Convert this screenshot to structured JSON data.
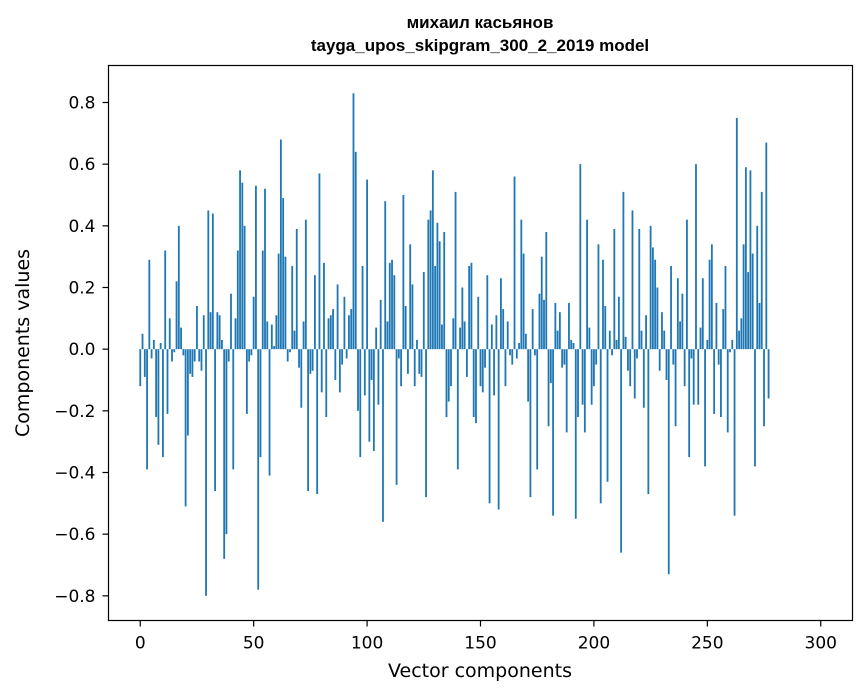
{
  "chart_data": {
    "type": "bar",
    "title_line1": "михаил касьянов",
    "title_line2": "tayga_upos_skipgram_300_2_2019 model",
    "xlabel": "Vector components",
    "ylabel": "Components values",
    "xlim": [
      -14,
      314
    ],
    "ylim": [
      -0.88,
      0.92
    ],
    "xticks": [
      0,
      50,
      100,
      150,
      200,
      250,
      300
    ],
    "yticks": [
      -0.8,
      -0.6,
      -0.4,
      -0.2,
      0.0,
      0.2,
      0.4,
      0.6,
      0.8
    ],
    "ytick_labels": [
      "−0.8",
      "−0.6",
      "−0.4",
      "−0.2",
      "0.0",
      "0.2",
      "0.4",
      "0.6",
      "0.8"
    ],
    "bar_color": "#1f77b4",
    "grid": false,
    "values": [
      -0.12,
      0.05,
      -0.09,
      -0.39,
      0.29,
      -0.03,
      0.03,
      -0.22,
      -0.31,
      0.02,
      -0.35,
      0.32,
      -0.21,
      0.1,
      -0.04,
      -0.01,
      0.22,
      0.4,
      0.07,
      -0.02,
      -0.51,
      -0.28,
      -0.08,
      -0.09,
      -0.04,
      0.14,
      -0.04,
      -0.07,
      0.11,
      -0.8,
      0.45,
      0.12,
      0.44,
      -0.46,
      0.12,
      0.11,
      0.03,
      -0.68,
      -0.6,
      -0.04,
      0.18,
      -0.39,
      0.1,
      0.32,
      0.58,
      0.54,
      0.4,
      -0.21,
      -0.04,
      -0.02,
      0.17,
      0.53,
      -0.78,
      -0.35,
      0.32,
      0.52,
      0.09,
      -0.41,
      0.08,
      0.01,
      0.11,
      0.31,
      0.68,
      0.49,
      0.3,
      -0.04,
      -0.01,
      0.27,
      0.06,
      0.39,
      -0.06,
      -0.19,
      0.09,
      0.42,
      -0.46,
      -0.08,
      -0.07,
      0.24,
      -0.47,
      0.57,
      -0.14,
      0.28,
      -0.22,
      0.1,
      0.11,
      0.13,
      -0.1,
      0.21,
      -0.14,
      -0.05,
      0.17,
      -0.03,
      0.11,
      0.13,
      0.83,
      0.64,
      -0.2,
      -0.35,
      0.27,
      -0.15,
      0.55,
      -0.3,
      -0.1,
      -0.33,
      0.07,
      -0.18,
      0.16,
      -0.56,
      0.48,
      0.09,
      0.28,
      0.29,
      0.24,
      -0.44,
      -0.03,
      -0.12,
      0.5,
      0.14,
      -0.08,
      0.34,
      0.21,
      -0.12,
      0.03,
      -0.08,
      -0.09,
      0.25,
      -0.48,
      0.42,
      0.45,
      0.58,
      0.27,
      0.41,
      0.35,
      0.08,
      0.38,
      -0.22,
      -0.17,
      -0.12,
      0.1,
      0.51,
      -0.39,
      0.07,
      0.2,
      0.09,
      -0.09,
      0.27,
      0.28,
      -0.22,
      -0.24,
      0.17,
      -0.12,
      -0.14,
      -0.06,
      0.24,
      -0.5,
      0.08,
      -0.15,
      0.11,
      -0.52,
      0.23,
      0.13,
      -0.12,
      0.09,
      -0.02,
      -0.05,
      0.56,
      -0.03,
      0.02,
      0.42,
      0.31,
      0.05,
      -0.17,
      -0.48,
      0.13,
      -0.02,
      -0.39,
      0.18,
      0.3,
      0.16,
      0.38,
      -0.25,
      -0.11,
      -0.54,
      0.15,
      0.06,
      0.12,
      -0.06,
      -0.05,
      -0.27,
      0.15,
      0.03,
      0.02,
      -0.55,
      -0.22,
      0.6,
      -0.18,
      -0.27,
      0.42,
      0.07,
      -0.18,
      -0.12,
      -0.05,
      0.34,
      -0.5,
      0.29,
      0.14,
      -0.43,
      0.06,
      -0.02,
      0.39,
      0.03,
      0.17,
      -0.66,
      0.51,
      0.04,
      -0.07,
      -0.12,
      0.45,
      -0.16,
      -0.03,
      0.39,
      0.06,
      -0.19,
      0.11,
      -0.47,
      0.4,
      0.33,
      0.29,
      0.2,
      -0.07,
      0.12,
      0.06,
      -0.1,
      -0.73,
      0.27,
      -0.05,
      -0.25,
      0.23,
      0.09,
      0.18,
      -0.12,
      0.42,
      -0.35,
      -0.03,
      -0.18,
      0.6,
      -0.18,
      0.07,
      0.23,
      -0.38,
      0.03,
      0.29,
      0.34,
      -0.21,
      0.15,
      -0.05,
      -0.22,
      0.13,
      0.27,
      -0.27,
      -0.01,
      0.03,
      -0.54,
      0.75,
      0.06,
      0.1,
      0.34,
      0.59,
      0.25,
      0.58,
      0.31,
      -0.38,
      0.4,
      0.15,
      0.51,
      -0.25,
      0.67,
      -0.16
    ]
  }
}
